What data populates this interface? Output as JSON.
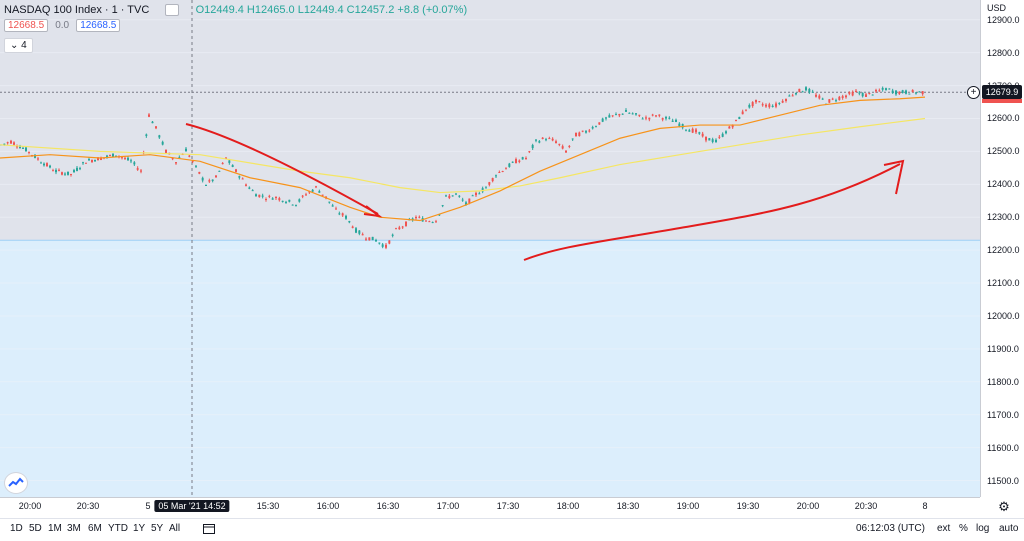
{
  "legend": {
    "title": "NASDAQ 100 Index · 1 · TVC",
    "ohlc": "O12449.4 H12465.0 L12449.4 C12457.2 +8.8 (+0.07%)",
    "bid": "12668.5",
    "spread": "0.0",
    "ask": "12668.5",
    "indicator_count": "4"
  },
  "price_axis": {
    "currency": "USD",
    "labels": [
      "12900.0",
      "12800.0",
      "12700.0",
      "12600.0",
      "12500.0",
      "12400.0",
      "12300.0",
      "12200.0",
      "12100.0",
      "12000.0",
      "11900.0",
      "11800.0",
      "11700.0",
      "11600.0",
      "11500.0"
    ],
    "last_price": "12679.9"
  },
  "time_axis": {
    "labels": [
      "20:00",
      "20:30",
      "5",
      "15:30",
      "16:00",
      "16:30",
      "17:00",
      "17:30",
      "18:00",
      "18:30",
      "19:00",
      "19:30",
      "20:00",
      "20:30",
      "8"
    ],
    "crosshair_date": "05 Mar '21",
    "crosshair_time": "14:52"
  },
  "toolbar": {
    "ranges": [
      "1D",
      "5D",
      "1M",
      "3M",
      "6M",
      "YTD",
      "1Y",
      "5Y",
      "All"
    ],
    "clock": "06:12:03 (UTC)",
    "options": [
      "ext",
      "%",
      "log",
      "auto"
    ]
  },
  "colors": {
    "candle_up": "#26a69a",
    "candle_down": "#ef5350",
    "ma_fast": "#f7931a",
    "ma_slow": "#f5e663",
    "annotation": "#e31c1c",
    "below_range_fill": "#dceefc",
    "below_range_line": "#9fcff5"
  },
  "chart_data": {
    "type": "candlestick",
    "ylim": [
      11450,
      12960
    ],
    "path_points": [
      [
        0,
        12520
      ],
      [
        10,
        12530
      ],
      [
        25,
        12505
      ],
      [
        40,
        12470
      ],
      [
        55,
        12440
      ],
      [
        70,
        12430
      ],
      [
        85,
        12470
      ],
      [
        100,
        12480
      ],
      [
        115,
        12490
      ],
      [
        130,
        12470
      ],
      [
        140,
        12440
      ],
      [
        148,
        12610
      ],
      [
        155,
        12570
      ],
      [
        165,
        12500
      ],
      [
        175,
        12470
      ],
      [
        185,
        12505
      ],
      [
        195,
        12450
      ],
      [
        205,
        12400
      ],
      [
        215,
        12420
      ],
      [
        225,
        12480
      ],
      [
        235,
        12440
      ],
      [
        245,
        12400
      ],
      [
        255,
        12370
      ],
      [
        265,
        12360
      ],
      [
        275,
        12360
      ],
      [
        285,
        12350
      ],
      [
        295,
        12340
      ],
      [
        305,
        12370
      ],
      [
        315,
        12390
      ],
      [
        325,
        12360
      ],
      [
        335,
        12320
      ],
      [
        345,
        12300
      ],
      [
        355,
        12260
      ],
      [
        365,
        12240
      ],
      [
        375,
        12230
      ],
      [
        385,
        12210
      ],
      [
        395,
        12260
      ],
      [
        405,
        12280
      ],
      [
        415,
        12300
      ],
      [
        425,
        12290
      ],
      [
        435,
        12290
      ],
      [
        445,
        12360
      ],
      [
        455,
        12370
      ],
      [
        465,
        12340
      ],
      [
        475,
        12370
      ],
      [
        485,
        12390
      ],
      [
        495,
        12430
      ],
      [
        505,
        12450
      ],
      [
        515,
        12470
      ],
      [
        525,
        12480
      ],
      [
        535,
        12530
      ],
      [
        545,
        12540
      ],
      [
        555,
        12530
      ],
      [
        565,
        12500
      ],
      [
        575,
        12550
      ],
      [
        585,
        12560
      ],
      [
        595,
        12580
      ],
      [
        605,
        12600
      ],
      [
        615,
        12610
      ],
      [
        625,
        12620
      ],
      [
        635,
        12610
      ],
      [
        645,
        12600
      ],
      [
        655,
        12610
      ],
      [
        665,
        12600
      ],
      [
        675,
        12590
      ],
      [
        685,
        12570
      ],
      [
        695,
        12560
      ],
      [
        705,
        12540
      ],
      [
        715,
        12530
      ],
      [
        725,
        12560
      ],
      [
        735,
        12590
      ],
      [
        745,
        12630
      ],
      [
        755,
        12650
      ],
      [
        765,
        12640
      ],
      [
        775,
        12640
      ],
      [
        785,
        12660
      ],
      [
        795,
        12680
      ],
      [
        805,
        12690
      ],
      [
        815,
        12670
      ],
      [
        825,
        12650
      ],
      [
        835,
        12660
      ],
      [
        845,
        12670
      ],
      [
        855,
        12680
      ],
      [
        865,
        12670
      ],
      [
        875,
        12680
      ],
      [
        885,
        12690
      ],
      [
        895,
        12680
      ],
      [
        905,
        12680
      ],
      [
        915,
        12680
      ],
      [
        925,
        12680
      ]
    ],
    "ma_fast": [
      [
        0,
        12480
      ],
      [
        50,
        12490
      ],
      [
        100,
        12480
      ],
      [
        150,
        12490
      ],
      [
        200,
        12470
      ],
      [
        250,
        12420
      ],
      [
        300,
        12390
      ],
      [
        350,
        12330
      ],
      [
        380,
        12300
      ],
      [
        420,
        12290
      ],
      [
        460,
        12330
      ],
      [
        500,
        12380
      ],
      [
        540,
        12440
      ],
      [
        580,
        12490
      ],
      [
        620,
        12540
      ],
      [
        660,
        12570
      ],
      [
        700,
        12580
      ],
      [
        740,
        12580
      ],
      [
        780,
        12610
      ],
      [
        820,
        12640
      ],
      [
        860,
        12655
      ],
      [
        900,
        12660
      ],
      [
        925,
        12665
      ]
    ],
    "ma_slow": [
      [
        0,
        12520
      ],
      [
        100,
        12500
      ],
      [
        200,
        12490
      ],
      [
        300,
        12440
      ],
      [
        350,
        12420
      ],
      [
        400,
        12390
      ],
      [
        440,
        12375
      ],
      [
        480,
        12380
      ],
      [
        520,
        12395
      ],
      [
        560,
        12420
      ],
      [
        620,
        12460
      ],
      [
        680,
        12490
      ],
      [
        740,
        12520
      ],
      [
        800,
        12550
      ],
      [
        860,
        12575
      ],
      [
        925,
        12600
      ]
    ]
  }
}
